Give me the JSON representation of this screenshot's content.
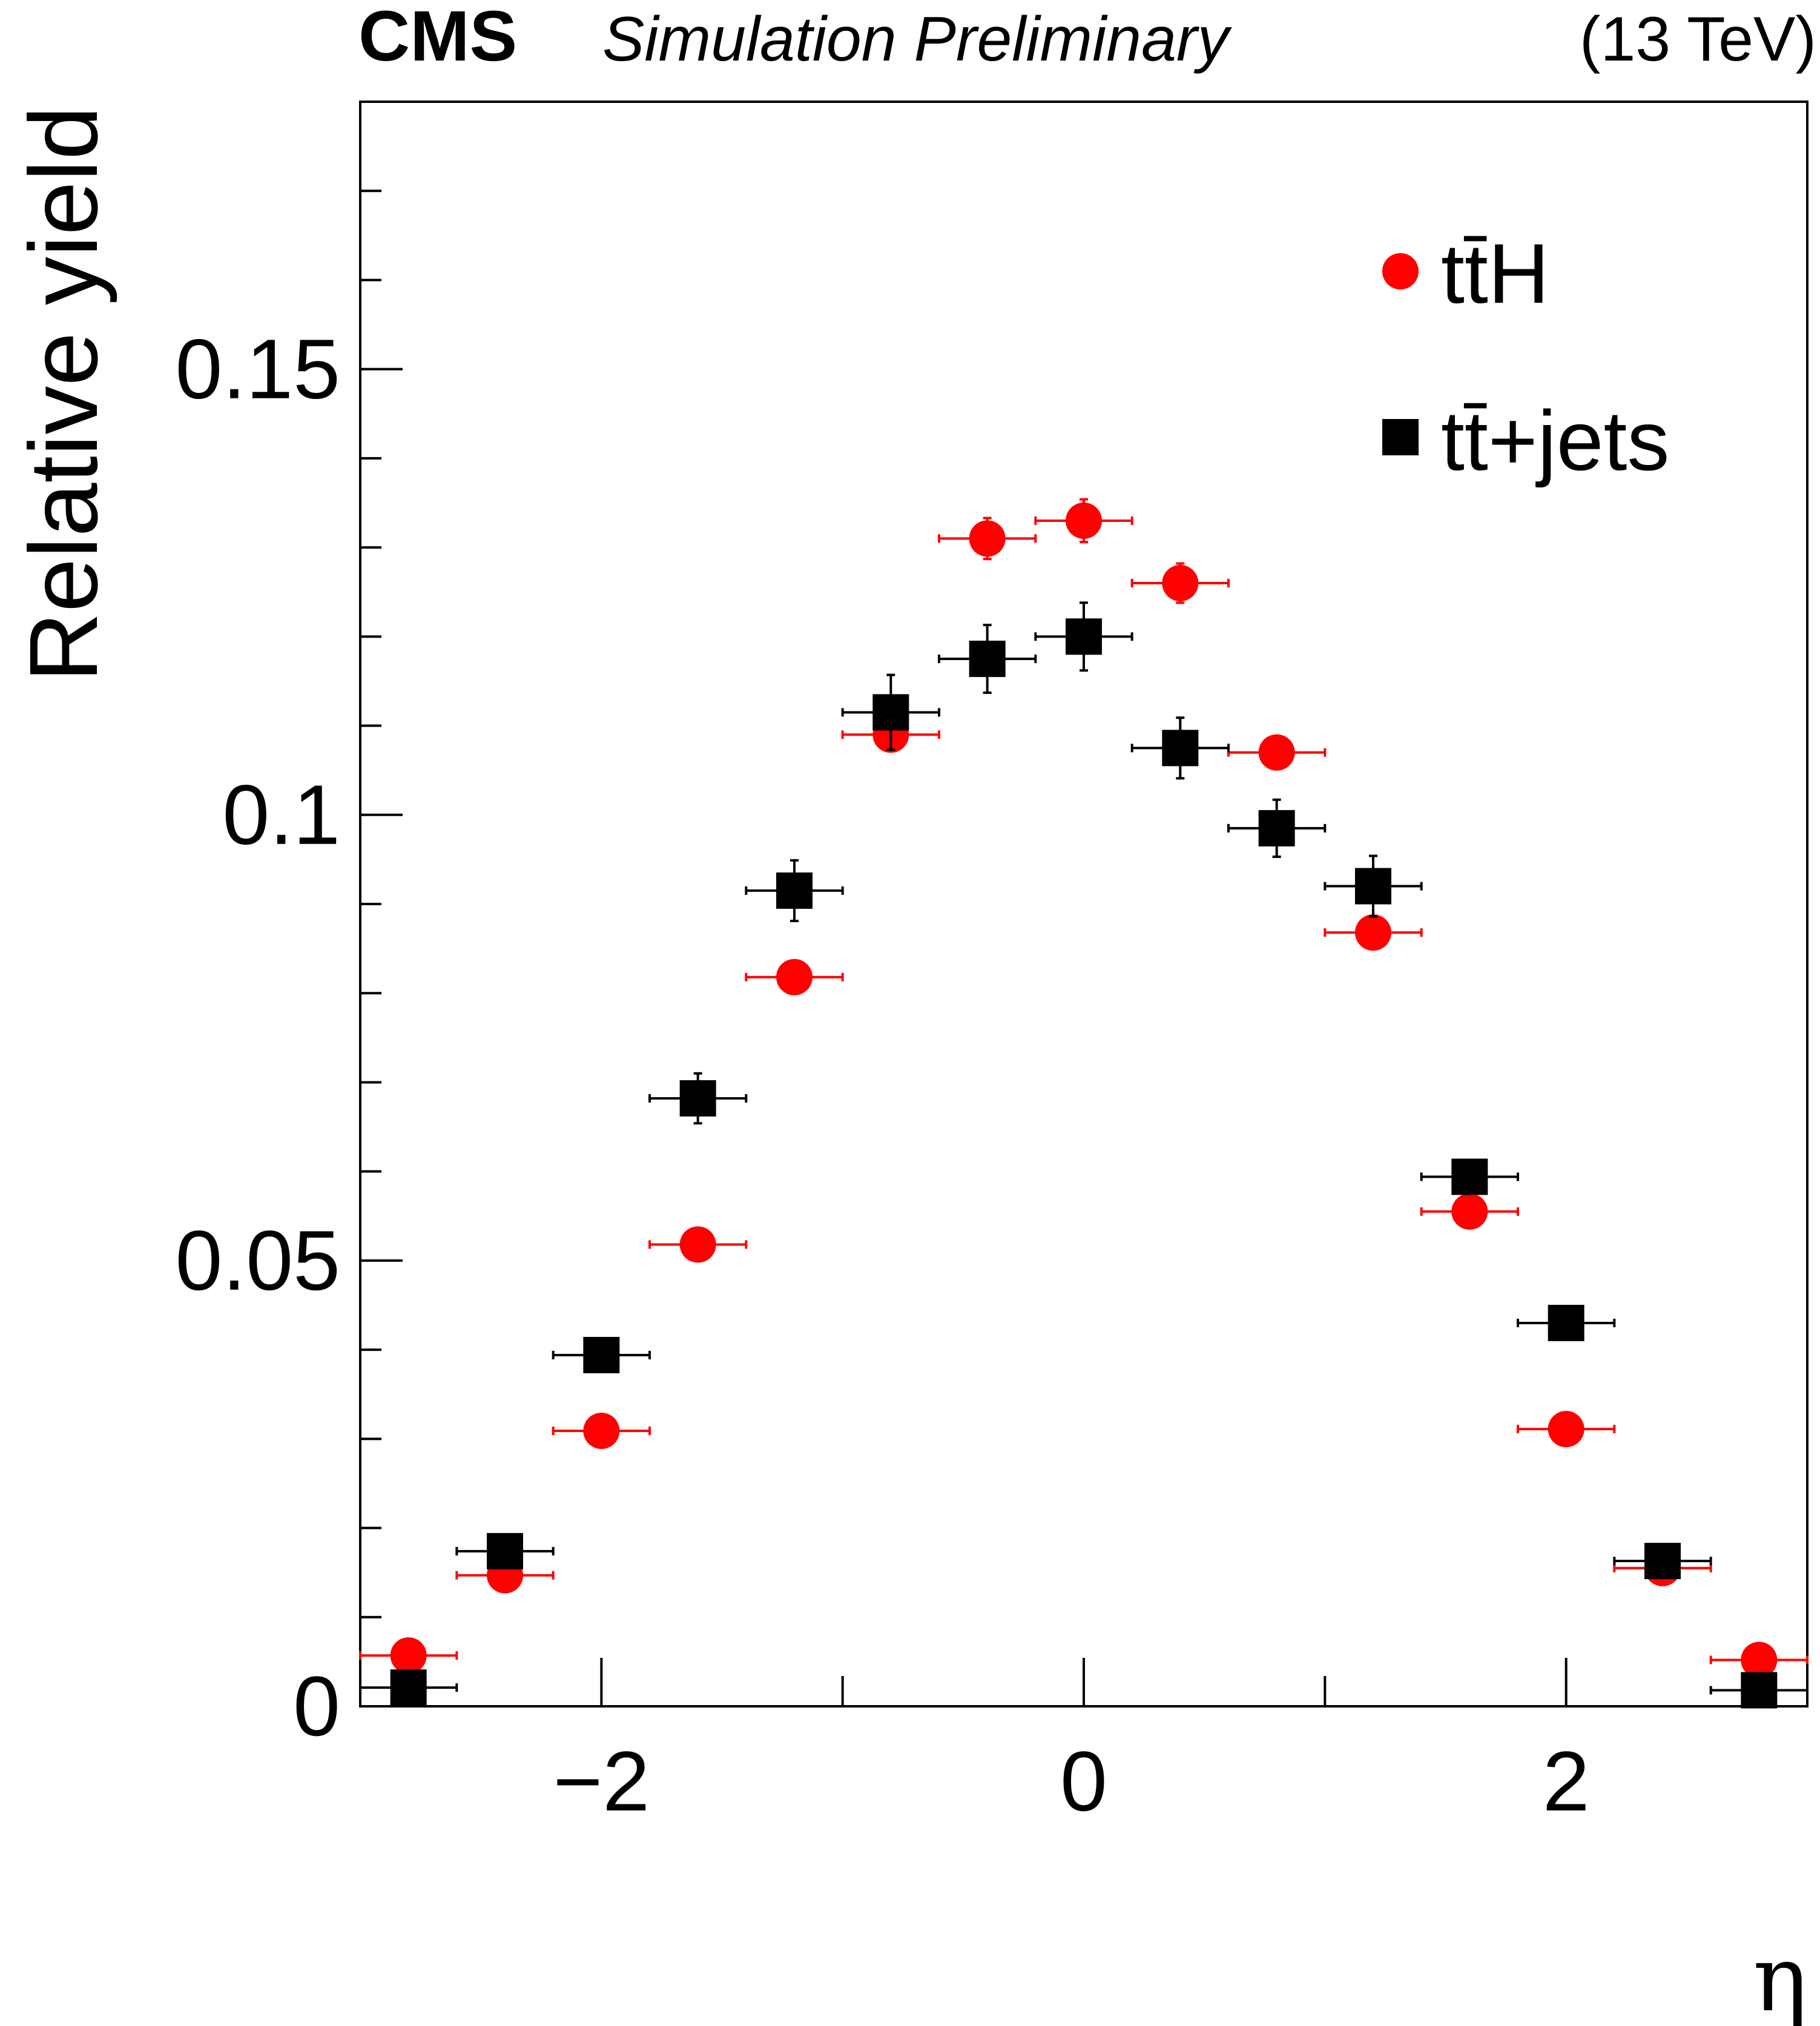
{
  "header": {
    "experiment": "CMS",
    "status": "Simulation Preliminary",
    "energy": "(13 TeV)"
  },
  "chart_data": {
    "type": "scatter",
    "title": "",
    "xlabel": "η",
    "ylabel": "Relative yield",
    "xlim": [
      -3,
      3
    ],
    "ylim": [
      0,
      0.18
    ],
    "x_ticks": [
      -2,
      0,
      2
    ],
    "x_tick_labels": [
      "−2",
      "0",
      "2"
    ],
    "y_ticks": [
      0,
      0.05,
      0.1,
      0.15
    ],
    "y_tick_labels": [
      "0",
      "0.05",
      "0.1",
      "0.15"
    ],
    "grid": false,
    "legend_position": "top-right",
    "bin_half_width": 0.2,
    "x": [
      -2.8,
      -2.4,
      -2.0,
      -1.6,
      -1.2,
      -0.8,
      -0.4,
      0.0,
      0.4,
      0.8,
      1.2,
      1.6,
      2.0,
      2.4,
      2.8
    ],
    "series": [
      {
        "name": "tt̄H",
        "marker": "circle",
        "color": "#ff0000",
        "values": [
          0.0057,
          0.0147,
          0.0309,
          0.0518,
          0.0818,
          0.109,
          0.131,
          0.133,
          0.126,
          0.107,
          0.0868,
          0.0555,
          0.0311,
          0.0155,
          0.0052
        ],
        "errors": [
          0.0003,
          0.0006,
          0.0008,
          0.001,
          0.0013,
          0.0018,
          0.0023,
          0.0024,
          0.0022,
          0.0018,
          0.0014,
          0.001,
          0.0008,
          0.0005,
          0.0003
        ]
      },
      {
        "name": "tt̄+jets",
        "marker": "square",
        "color": "#000000",
        "values": [
          0.0021,
          0.0174,
          0.0394,
          0.0682,
          0.0915,
          0.1115,
          0.1175,
          0.12,
          0.1075,
          0.0985,
          0.092,
          0.0594,
          0.043,
          0.0163,
          0.0018
        ],
        "errors": [
          0.0004,
          0.0012,
          0.0013,
          0.0028,
          0.0034,
          0.0042,
          0.0038,
          0.0038,
          0.0034,
          0.0032,
          0.0034,
          0.0018,
          0.0013,
          0.0007,
          0.0004
        ]
      }
    ]
  }
}
